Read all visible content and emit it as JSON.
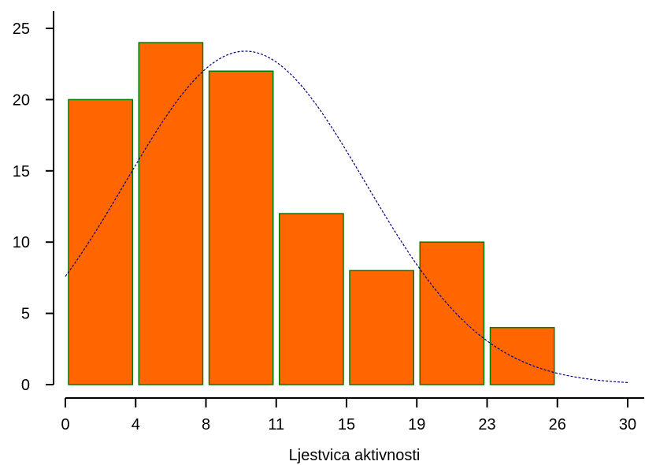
{
  "chart_data": {
    "type": "bar",
    "title": "",
    "xlabel": "Ljestvica aktivnosti",
    "ylabel": "",
    "x_ticks": [
      "0",
      "4",
      "8",
      "11",
      "15",
      "19",
      "23",
      "26",
      "30"
    ],
    "x_tick_values": [
      0,
      3.75,
      7.5,
      11.25,
      15,
      18.75,
      22.5,
      26.25,
      30
    ],
    "y_ticks": [
      "0",
      "5",
      "10",
      "15",
      "20",
      "25"
    ],
    "ylim": [
      0,
      25
    ],
    "xlim": [
      0,
      30
    ],
    "bins": [
      {
        "from": 0,
        "to": 3.75,
        "value": 20
      },
      {
        "from": 3.75,
        "to": 7.5,
        "value": 24
      },
      {
        "from": 7.5,
        "to": 11.25,
        "value": 22
      },
      {
        "from": 11.25,
        "to": 15,
        "value": 12
      },
      {
        "from": 15,
        "to": 18.75,
        "value": 8
      },
      {
        "from": 18.75,
        "to": 22.5,
        "value": 10
      },
      {
        "from": 22.5,
        "to": 26.25,
        "value": 4
      }
    ],
    "curve": {
      "kind": "normal",
      "mean": 9.6,
      "sd": 6.4,
      "peak": 23.4
    },
    "colors": {
      "bar_fill": "#ff6600",
      "bar_stroke": "#007a00",
      "curve": "#000080",
      "axis": "#000000"
    },
    "grid": false,
    "legend": "none"
  }
}
